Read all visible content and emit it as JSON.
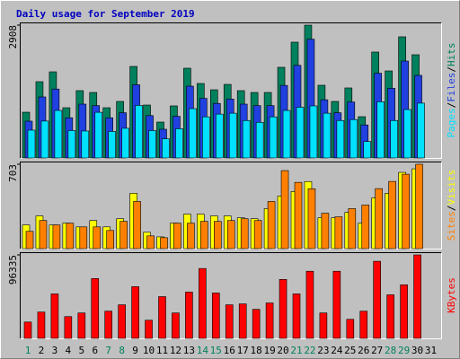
{
  "chart_data": [
    {
      "type": "bar",
      "title": "Daily usage for September 2019",
      "categories": [
        "1",
        "2",
        "3",
        "4",
        "5",
        "6",
        "7",
        "8",
        "9",
        "10",
        "11",
        "12",
        "13",
        "14",
        "15",
        "16",
        "17",
        "18",
        "19",
        "20",
        "21",
        "22",
        "23",
        "24",
        "25",
        "26",
        "27",
        "28",
        "29",
        "30",
        "31"
      ],
      "category_colors": [
        "#00805c",
        "#000000",
        "#000000",
        "#000000",
        "#000000",
        "#000000",
        "#00805c",
        "#00805c",
        "#000000",
        "#000000",
        "#000000",
        "#000000",
        "#000000",
        "#00805c",
        "#00805c",
        "#000000",
        "#000000",
        "#000000",
        "#000000",
        "#000000",
        "#00805c",
        "#00805c",
        "#000000",
        "#000000",
        "#000000",
        "#000000",
        "#000000",
        "#00805c",
        "#00805c",
        "#000000",
        "#000000"
      ],
      "legend_separator": "/",
      "series": [
        {
          "name": "Hits",
          "color": "#00805c",
          "values": [
            1002,
            1670,
            1886,
            1100,
            1474,
            1434,
            1100,
            1238,
            2004,
            1159,
            786,
            1140,
            1965,
            1631,
            1493,
            1611,
            1474,
            1434,
            1434,
            1985,
            2535,
            2908,
            1592,
            1238,
            1533,
            904,
            2319,
            1906,
            2653,
            2260,
            null
          ]
        },
        {
          "name": "Files",
          "color": "#2040e0",
          "values": [
            806,
            1336,
            1509,
            880,
            1179,
            1147,
            880,
            990,
            1603,
            927,
            629,
            912,
            1572,
            1305,
            1194,
            1289,
            1179,
            1147,
            1147,
            1588,
            2028,
            2600,
            1274,
            990,
            1226,
            723,
            1855,
            1525,
            2122,
            1808,
            null
          ]
        },
        {
          "name": "Pages",
          "color": "#00e0ff",
          "values": [
            609,
            808,
            1040,
            600,
            590,
            1000,
            580,
            650,
            1150,
            600,
            420,
            640,
            1080,
            900,
            960,
            980,
            820,
            780,
            900,
            1040,
            1110,
            1140,
            980,
            820,
            840,
            360,
            1230,
            820,
            1060,
            1200,
            null
          ]
        }
      ],
      "ylim": [
        0,
        2908
      ],
      "yticks": [
        2908
      ]
    },
    {
      "type": "bar",
      "series": [
        {
          "name": "Visits",
          "color": "#ffff00",
          "values": [
            197,
            272,
            197,
            212,
            181,
            234,
            181,
            249,
            461,
            136,
            98,
            212,
            287,
            287,
            272,
            272,
            257,
            249,
            333,
            438,
            476,
            559,
            257,
            257,
            302,
            212,
            423,
            461,
            635,
            665,
            null
          ]
        },
        {
          "name": "Sites",
          "color": "#ff8000",
          "values": [
            144,
            234,
            197,
            212,
            181,
            181,
            151,
            227,
            393,
            106,
            91,
            212,
            212,
            227,
            227,
            234,
            249,
            234,
            393,
            650,
            552,
            499,
            295,
            265,
            333,
            363,
            500,
            560,
            620,
            703,
            null
          ]
        }
      ],
      "ylim": [
        0,
        703
      ],
      "yticks": [
        703
      ]
    },
    {
      "type": "bar",
      "series": [
        {
          "name": "KBytes",
          "color": "#ff0000",
          "values": [
            18846,
            30363,
            51303,
            25128,
            29316,
            69102,
            31410,
            38739,
            59679,
            20940,
            48162,
            29316,
            53397,
            80619,
            52350,
            38739,
            39786,
            33504,
            40833,
            68055,
            51303,
            77478,
            29316,
            77478,
            21987,
            31410,
            88995,
            50256,
            61773,
            96335,
            null
          ]
        }
      ],
      "ylim": [
        0,
        96335
      ],
      "yticks": [
        96335
      ]
    }
  ]
}
